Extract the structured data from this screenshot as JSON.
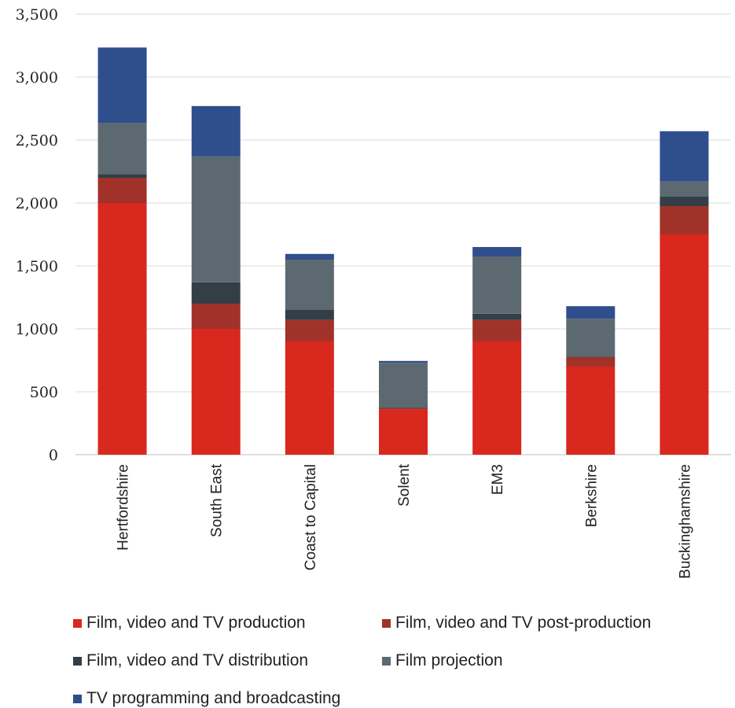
{
  "chart_data": {
    "type": "bar",
    "stacked": true,
    "title": "",
    "xlabel": "",
    "ylabel": "",
    "ylim": [
      0,
      3500
    ],
    "yticks": [
      0,
      500,
      1000,
      1500,
      2000,
      2500,
      3000,
      3500
    ],
    "ytick_labels": [
      "0",
      "500",
      "1,000",
      "1,500",
      "2,000",
      "2,500",
      "3,000",
      "3,500"
    ],
    "grid": true,
    "legend_position": "bottom",
    "categories": [
      "Hertfordshire",
      "South East",
      "Coast to Capital",
      "Solent",
      "EM3",
      "Berkshire",
      "Buckinghamshire"
    ],
    "series": [
      {
        "name": "Film, video and TV production",
        "color": "#d9281e",
        "values": [
          2000,
          1000,
          900,
          360,
          900,
          700,
          1750
        ]
      },
      {
        "name": "Film, video and TV post-production",
        "color": "#a0322a",
        "values": [
          200,
          200,
          170,
          10,
          170,
          75,
          225
        ]
      },
      {
        "name": "Film, video and TV distribution",
        "color": "#343e47",
        "values": [
          30,
          170,
          80,
          5,
          50,
          5,
          75
        ]
      },
      {
        "name": "Film projection",
        "color": "#5d6970",
        "values": [
          405,
          1000,
          400,
          355,
          455,
          300,
          120
        ]
      },
      {
        "name": "TV programming and broadcasting",
        "color": "#2f4e8c",
        "values": [
          600,
          400,
          45,
          15,
          75,
          100,
          400
        ]
      }
    ]
  }
}
